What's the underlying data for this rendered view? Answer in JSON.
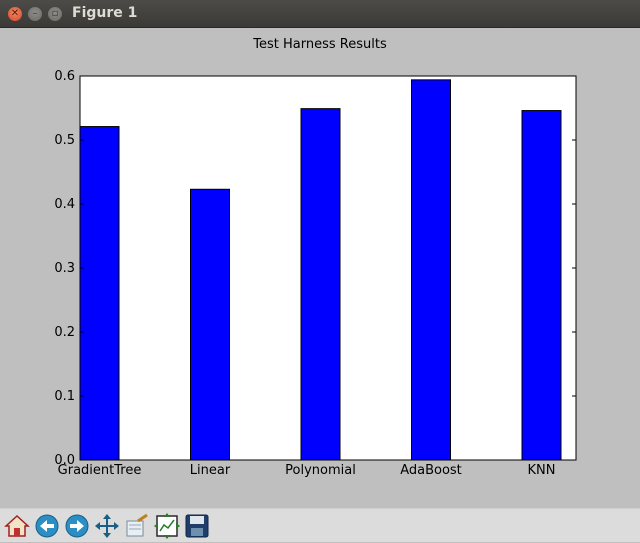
{
  "window": {
    "title": "Figure 1"
  },
  "chart_data": {
    "type": "bar",
    "title": "Test Harness Results",
    "categories": [
      "GradientTree",
      "Linear",
      "Polynomial",
      "AdaBoost",
      "KNN"
    ],
    "values": [
      0.521,
      0.423,
      0.549,
      0.594,
      0.546
    ],
    "ylim": [
      0,
      0.6
    ],
    "yticks": [
      "0.0",
      "0.1",
      "0.2",
      "0.3",
      "0.4",
      "0.5",
      "0.6"
    ],
    "bar_color": "#0000ff",
    "xlabel": "",
    "ylabel": "",
    "grid": false
  },
  "toolbar": {
    "buttons": [
      {
        "name": "home-icon"
      },
      {
        "name": "back-icon"
      },
      {
        "name": "forward-icon"
      },
      {
        "name": "pan-icon"
      },
      {
        "name": "zoom-icon"
      },
      {
        "name": "subplots-icon"
      },
      {
        "name": "save-icon"
      }
    ]
  }
}
